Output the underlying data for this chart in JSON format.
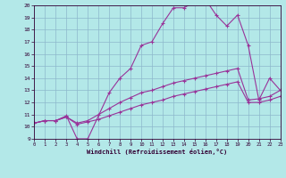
{
  "xlabel": "Windchill (Refroidissement éolien,°C)",
  "xlim": [
    0,
    23
  ],
  "ylim": [
    9,
    20
  ],
  "yticks": [
    9,
    10,
    11,
    12,
    13,
    14,
    15,
    16,
    17,
    18,
    19,
    20
  ],
  "xticks": [
    0,
    1,
    2,
    3,
    4,
    5,
    6,
    7,
    8,
    9,
    10,
    11,
    12,
    13,
    14,
    15,
    16,
    17,
    18,
    19,
    20,
    21,
    22,
    23
  ],
  "bg_color": "#b3e8e8",
  "grid_color": "#8db8cc",
  "line_color": "#993399",
  "line1_x": [
    0,
    1,
    2,
    3,
    4,
    5,
    7,
    8,
    9,
    10,
    11,
    12,
    13,
    14,
    15,
    16,
    17,
    18,
    19,
    20,
    21,
    22,
    23
  ],
  "line1_y": [
    10.3,
    10.5,
    10.5,
    10.9,
    9.0,
    9.0,
    12.8,
    14.0,
    14.8,
    16.7,
    17.0,
    18.5,
    19.8,
    19.8,
    20.3,
    20.5,
    19.2,
    18.3,
    19.2,
    16.7,
    12.2,
    14.0,
    13.0
  ],
  "line2_x": [
    0,
    1,
    2,
    3,
    4,
    5,
    6,
    7,
    8,
    9,
    10,
    11,
    12,
    13,
    14,
    15,
    16,
    17,
    18,
    19,
    20,
    21,
    22,
    23
  ],
  "line2_y": [
    10.3,
    10.5,
    10.5,
    10.8,
    10.3,
    10.5,
    11.0,
    11.5,
    12.0,
    12.4,
    12.8,
    13.0,
    13.3,
    13.6,
    13.8,
    14.0,
    14.2,
    14.4,
    14.6,
    14.8,
    12.2,
    12.3,
    12.5,
    13.0
  ],
  "line3_x": [
    0,
    1,
    2,
    3,
    4,
    5,
    6,
    7,
    8,
    9,
    10,
    11,
    12,
    13,
    14,
    15,
    16,
    17,
    18,
    19,
    20,
    21,
    22,
    23
  ],
  "line3_y": [
    10.3,
    10.5,
    10.5,
    10.8,
    10.2,
    10.4,
    10.6,
    10.9,
    11.2,
    11.5,
    11.8,
    12.0,
    12.2,
    12.5,
    12.7,
    12.9,
    13.1,
    13.3,
    13.5,
    13.7,
    12.0,
    12.0,
    12.2,
    12.5
  ]
}
